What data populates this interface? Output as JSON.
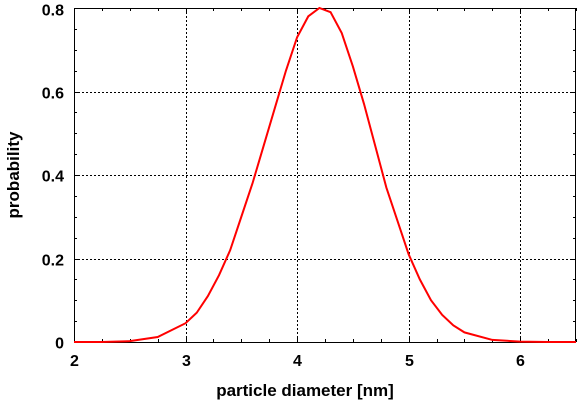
{
  "chart_data": {
    "type": "line",
    "title": "",
    "xlabel": "particle diameter [nm]",
    "ylabel": "probability",
    "xlim": [
      2,
      6.5
    ],
    "ylim": [
      0,
      0.8
    ],
    "grid": true,
    "x_ticks": [
      2,
      3,
      4,
      5,
      6
    ],
    "x_tick_labels": [
      "2",
      "3",
      "4",
      "5",
      "6"
    ],
    "y_ticks": [
      0,
      0.2,
      0.4,
      0.6,
      0.8
    ],
    "y_tick_labels": [
      "0",
      "0.2",
      "0.4",
      "0.6",
      "0.8"
    ],
    "series": [
      {
        "color": "#ff0000",
        "x": [
          2.0,
          2.25,
          2.5,
          2.75,
          3.0,
          3.1,
          3.2,
          3.3,
          3.4,
          3.5,
          3.6,
          3.7,
          3.8,
          3.9,
          4.0,
          4.1,
          4.2,
          4.3,
          4.4,
          4.5,
          4.6,
          4.7,
          4.8,
          4.9,
          5.0,
          5.1,
          5.2,
          5.3,
          5.4,
          5.5,
          5.75,
          6.0,
          6.25,
          6.5
        ],
        "y": [
          0.0,
          0.0,
          0.002,
          0.012,
          0.045,
          0.07,
          0.11,
          0.16,
          0.22,
          0.3,
          0.38,
          0.47,
          0.56,
          0.65,
          0.73,
          0.78,
          0.8,
          0.79,
          0.74,
          0.66,
          0.57,
          0.47,
          0.37,
          0.29,
          0.21,
          0.15,
          0.1,
          0.065,
          0.04,
          0.023,
          0.005,
          0.001,
          0.0,
          0.0
        ]
      }
    ]
  }
}
